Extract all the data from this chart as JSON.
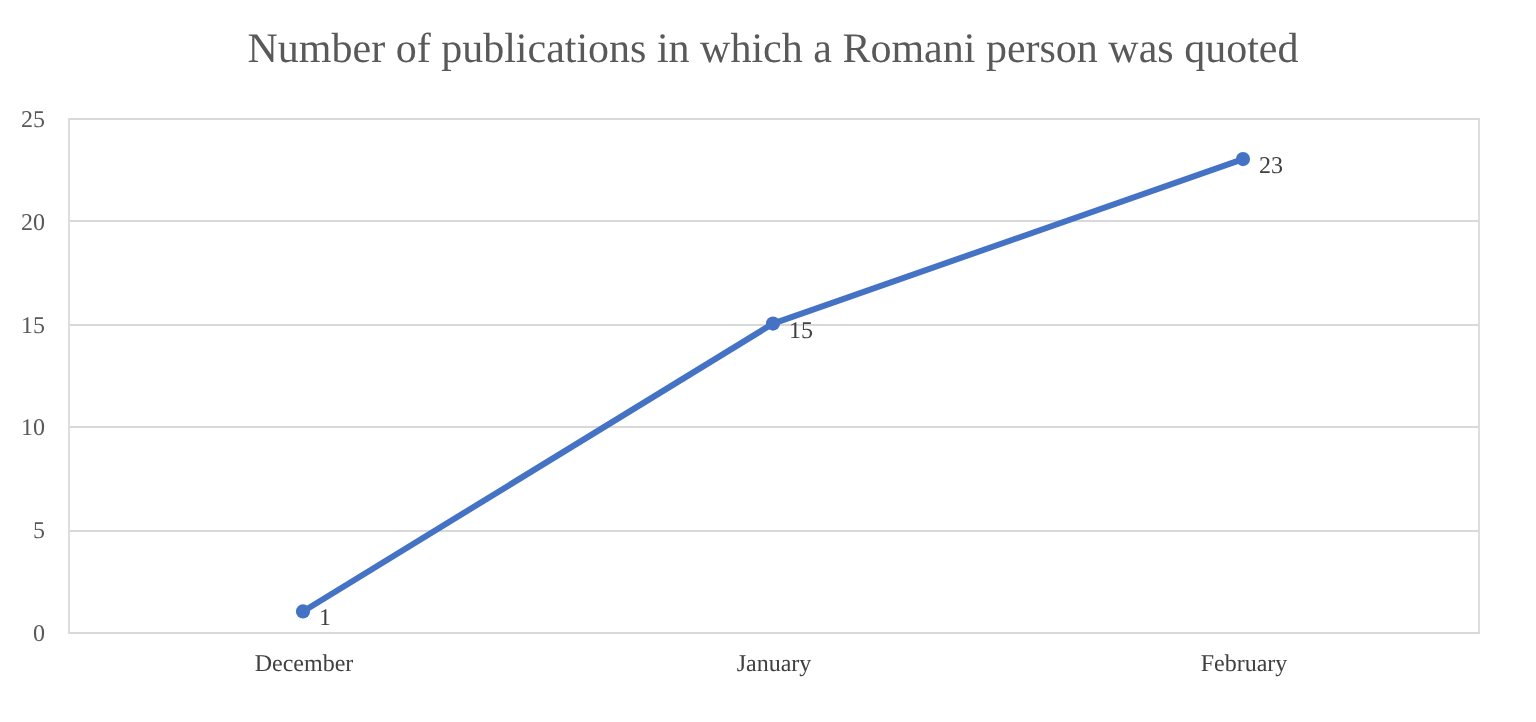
{
  "chart_data": {
    "type": "line",
    "title": "Number of publications in which a Romani person was quoted",
    "categories": [
      "December",
      "January",
      "February"
    ],
    "values": [
      1,
      15,
      23
    ],
    "color": "#4472c4",
    "ylim": [
      0,
      25
    ],
    "yticks": [
      0,
      5,
      10,
      15,
      20,
      25
    ],
    "grid": "y",
    "marker": "circle",
    "line_style": "solid",
    "data_labels": true
  }
}
